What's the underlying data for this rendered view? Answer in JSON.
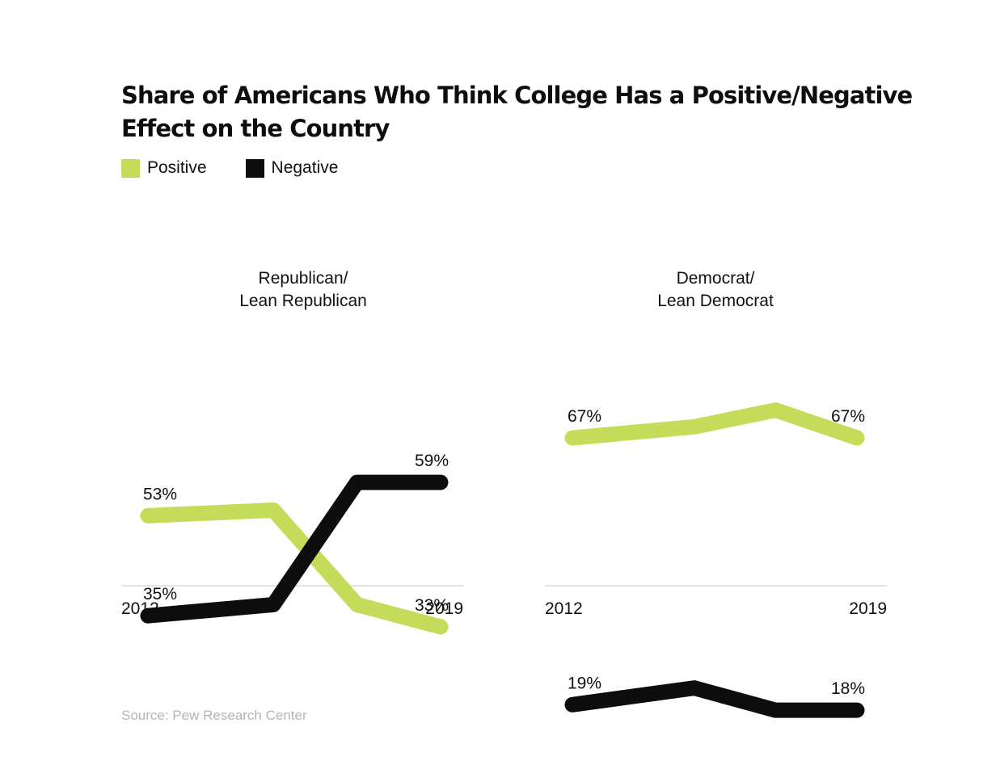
{
  "header": {
    "title": "Share of Americans Who Think College Has a Positive/Negative Effect on the Country"
  },
  "legend": {
    "items": [
      {
        "label": "Positive",
        "color": "#c5dc5a"
      },
      {
        "label": "Negative",
        "color": "#0d0d0d"
      }
    ]
  },
  "footer": {
    "source": "Source: Pew Research Center"
  },
  "chart_data": [
    {
      "type": "line",
      "title": "Republican/\nLean Republican",
      "x_start_label": "2012",
      "x_end_label": "2019",
      "x_years": [
        2012,
        2015,
        2017,
        2019
      ],
      "ylim": [
        0,
        100
      ],
      "grid": false,
      "series": [
        {
          "name": "Positive",
          "values": [
            53,
            54,
            37,
            33
          ],
          "start_label": "53%",
          "end_label": "33%"
        },
        {
          "name": "Negative",
          "values": [
            35,
            37,
            59,
            59
          ],
          "start_label": "35%",
          "end_label": "59%"
        }
      ]
    },
    {
      "type": "line",
      "title": "Democrat/\nLean Democrat",
      "x_start_label": "2012",
      "x_end_label": "2019",
      "x_years": [
        2012,
        2015,
        2017,
        2019
      ],
      "ylim": [
        0,
        100
      ],
      "grid": false,
      "series": [
        {
          "name": "Positive",
          "values": [
            67,
            69,
            72,
            67
          ],
          "start_label": "67%",
          "end_label": "67%"
        },
        {
          "name": "Negative",
          "values": [
            19,
            22,
            18,
            18
          ],
          "start_label": "19%",
          "end_label": "18%"
        }
      ]
    }
  ]
}
